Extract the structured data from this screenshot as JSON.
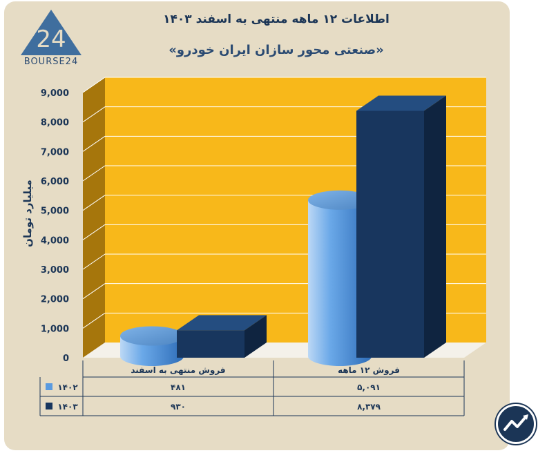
{
  "header": {
    "title": "اطلاعات ۱۲ ماهه منتهی به اسفند ۱۴۰۳",
    "subtitle": "«صنعتی محور سازان ایران خودرو»"
  },
  "logo": {
    "text": "BOURSE24",
    "mark": "24",
    "icon": "bourse24-logo"
  },
  "corner_icon": "trend-arrow-logo-icon",
  "colors": {
    "series1402": "#5a9be0",
    "series1403": "#18365e",
    "background": "#f8b81a",
    "card": "#e6dcc5"
  },
  "chart_data": {
    "type": "bar",
    "ylabel": "میلیارد تومان",
    "ylim": [
      0,
      9000
    ],
    "yticks": [
      "0",
      "1,000",
      "2,000",
      "3,000",
      "4,000",
      "5,000",
      "6,000",
      "7,000",
      "8,000",
      "9,000"
    ],
    "yticks_values": [
      0,
      1000,
      2000,
      3000,
      4000,
      5000,
      6000,
      7000,
      8000,
      9000
    ],
    "categories": [
      "فروش منتهی به  اسفند",
      "فروش ۱۲ ماهه"
    ],
    "series": [
      {
        "name": "۱۴۰۲",
        "values": [
          481,
          5091
        ],
        "labels": [
          "۴۸۱",
          "۵,۰۹۱"
        ]
      },
      {
        "name": "۱۴۰۳",
        "values": [
          930,
          8379
        ],
        "labels": [
          "۹۳۰",
          "۸,۳۷۹"
        ]
      }
    ],
    "grid": true,
    "legend": "table-left"
  }
}
